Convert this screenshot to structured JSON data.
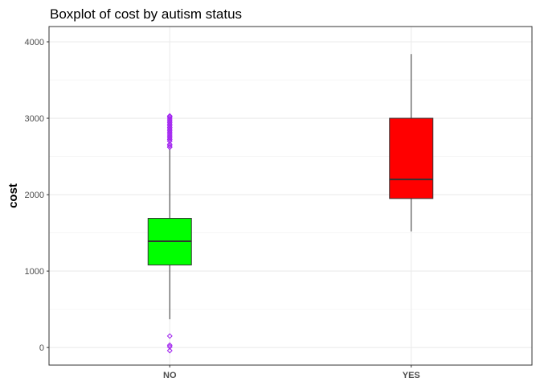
{
  "chart_data": {
    "type": "boxplot",
    "title": "Boxplot of cost by autism status",
    "xlabel": "",
    "ylabel": "cost",
    "ylim": [
      -230,
      4200
    ],
    "yticks": [
      0,
      1000,
      2000,
      3000,
      4000
    ],
    "grid": true,
    "legend": "none",
    "categories": [
      "NO",
      "YES"
    ],
    "boxes": [
      {
        "category": "NO",
        "fill": "#00ff00",
        "whisker_low": 370,
        "q1": 1080,
        "median": 1390,
        "q3": 1690,
        "whisker_high": 2600,
        "outliers": [
          -40,
          10,
          30,
          150,
          2620,
          2640,
          2660,
          2700,
          2720,
          2740,
          2760,
          2780,
          2800,
          2820,
          2840,
          2860,
          2880,
          2900,
          2920,
          2940,
          2960,
          2980,
          3000,
          3020,
          3030
        ]
      },
      {
        "category": "YES",
        "fill": "#ff0000",
        "whisker_low": 1520,
        "q1": 1950,
        "median": 2200,
        "q3": 3000,
        "whisker_high": 3840,
        "outliers": []
      }
    ],
    "outlier_color": "#a020f0"
  }
}
